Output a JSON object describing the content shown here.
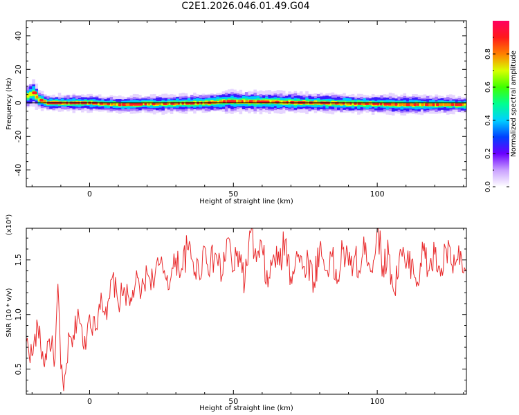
{
  "title": "C2E1.2026.046.01.49.G04",
  "chart_data": [
    {
      "type": "heatmap",
      "title": "C2E1.2026.046.01.49.G04",
      "xlabel": "Height of straight line (km)",
      "ylabel": "Frequency (Hz)",
      "xlim": [
        -22,
        131
      ],
      "ylim": [
        -50,
        49
      ],
      "xticks": [
        0,
        50,
        100
      ],
      "xtick_labels": [
        "0",
        "50",
        "100"
      ],
      "yticks": [
        -40,
        -20,
        0,
        20,
        40
      ],
      "ytick_labels": [
        "-40",
        "-20",
        "0",
        "20",
        "40"
      ],
      "colorbar": {
        "label": "Normalized spectral amplitude",
        "range": [
          0,
          1
        ],
        "ticks": [
          0,
          0.2,
          0.4,
          0.6,
          0.8
        ],
        "tick_labels": [
          "0.0",
          "0.2",
          "0.4",
          "0.6",
          "0.8"
        ]
      },
      "reference_line_hz": 0,
      "band": [
        {
          "x": -22,
          "center": 4,
          "half_width": 4
        },
        {
          "x": -20,
          "center": 6,
          "half_width": 5
        },
        {
          "x": -18,
          "center": 2,
          "half_width": 3.5
        },
        {
          "x": -15,
          "center": 0,
          "half_width": 3
        },
        {
          "x": 0,
          "center": 0,
          "half_width": 3
        },
        {
          "x": 10,
          "center": -1,
          "half_width": 3
        },
        {
          "x": 40,
          "center": 0,
          "half_width": 3.5
        },
        {
          "x": 48,
          "center": 1,
          "half_width": 4
        },
        {
          "x": 80,
          "center": 0,
          "half_width": 3.5
        },
        {
          "x": 110,
          "center": -1,
          "half_width": 3.5
        },
        {
          "x": 131,
          "center": -1,
          "half_width": 3
        }
      ]
    },
    {
      "type": "line",
      "xlabel": "Height of straight line (km)",
      "ylabel": "SNR (10 * v/v)",
      "scale_label": "(x10⁴)",
      "xlim": [
        -22,
        131
      ],
      "ylim": [
        0.27,
        1.79
      ],
      "xticks": [
        0,
        50,
        100
      ],
      "xtick_labels": [
        "0",
        "50",
        "100"
      ],
      "yticks": [
        0.5,
        1.0,
        1.5
      ],
      "ytick_labels": [
        "0.5",
        "1.0",
        "1.5"
      ],
      "series": [
        {
          "name": "SNR",
          "color": "#e8282a",
          "x": [
            -22,
            -20,
            -18,
            -16,
            -14,
            -12,
            -11,
            -10,
            -9,
            -8,
            -7,
            -6,
            -4,
            -2,
            0,
            2,
            4,
            6,
            8,
            10,
            12,
            14,
            16,
            18,
            20,
            22,
            24,
            26,
            28,
            30,
            32,
            34,
            36,
            38,
            40,
            42,
            44,
            46,
            48,
            50,
            52,
            54,
            56,
            58,
            60,
            62,
            64,
            66,
            68,
            70,
            72,
            74,
            76,
            78,
            80,
            82,
            84,
            86,
            88,
            90,
            92,
            94,
            96,
            98,
            100,
            102,
            104,
            106,
            108,
            110,
            112,
            114,
            116,
            118,
            120,
            122,
            124,
            126,
            128,
            130,
            131
          ],
          "values": [
            0.75,
            0.62,
            0.9,
            0.55,
            0.78,
            0.6,
            1.28,
            0.5,
            0.3,
            0.55,
            0.8,
            0.7,
            1.05,
            0.68,
            1.0,
            0.85,
            1.2,
            0.95,
            1.35,
            1.1,
            1.25,
            1.08,
            1.3,
            1.2,
            1.38,
            1.32,
            1.45,
            1.4,
            1.3,
            1.52,
            1.42,
            1.6,
            1.48,
            1.38,
            1.62,
            1.45,
            1.55,
            1.35,
            1.7,
            1.4,
            1.58,
            1.3,
            1.75,
            1.48,
            1.6,
            1.25,
            1.55,
            1.45,
            1.68,
            1.35,
            1.58,
            1.42,
            1.5,
            1.3,
            1.62,
            1.4,
            1.55,
            1.28,
            1.6,
            1.45,
            1.52,
            1.38,
            1.66,
            1.4,
            1.78,
            1.45,
            1.55,
            1.2,
            1.6,
            1.42,
            1.5,
            1.3,
            1.58,
            1.4,
            1.55,
            1.35,
            1.6,
            1.45,
            1.5,
            1.38,
            1.4
          ]
        }
      ]
    }
  ]
}
